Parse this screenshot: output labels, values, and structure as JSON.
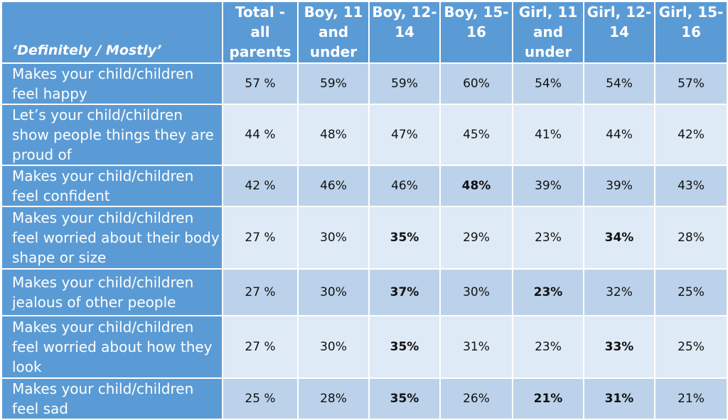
{
  "chart_data": {
    "type": "table",
    "corner_label": "‘Definitely / Mostly’",
    "columns": [
      "Total - all parents",
      "Boy, 11 and under",
      "Boy, 12-14",
      "Boy, 15-16",
      "Girl, 11 and under",
      "Girl, 12-14",
      "Girl, 15-16"
    ],
    "rows": [
      {
        "label": "Makes your child/children feel happy",
        "values": [
          "57 %",
          "59%",
          "59%",
          "60%",
          "54%",
          "54%",
          "57%"
        ],
        "bold": [
          false,
          false,
          false,
          false,
          false,
          false,
          false
        ]
      },
      {
        "label": "Let’s your child/children show people things they are proud of",
        "values": [
          "44 %",
          "48%",
          "47%",
          "45%",
          "41%",
          "44%",
          "42%"
        ],
        "bold": [
          false,
          false,
          false,
          false,
          false,
          false,
          false
        ]
      },
      {
        "label": "Makes your child/children feel confident",
        "values": [
          "42 %",
          "46%",
          "46%",
          "48%",
          "39%",
          "39%",
          "43%"
        ],
        "bold": [
          false,
          false,
          false,
          true,
          false,
          false,
          false
        ]
      },
      {
        "label": "Makes your child/children feel worried about their body shape or size",
        "values": [
          "27 %",
          "30%",
          "35%",
          "29%",
          "23%",
          "34%",
          "28%"
        ],
        "bold": [
          false,
          false,
          true,
          false,
          false,
          true,
          false
        ]
      },
      {
        "label": "Makes your child/children jealous of other people",
        "values": [
          "27 %",
          "30%",
          "37%",
          "30%",
          "23%",
          "32%",
          "25%"
        ],
        "bold": [
          false,
          false,
          true,
          false,
          true,
          false,
          false
        ]
      },
      {
        "label": "Makes your child/children feel worried about how they look",
        "values": [
          "27 %",
          "30%",
          "35%",
          "31%",
          "23%",
          "33%",
          "25%"
        ],
        "bold": [
          false,
          false,
          true,
          false,
          false,
          true,
          false
        ]
      },
      {
        "label": "Makes your child/children feel sad",
        "values": [
          "25 %",
          "28%",
          "35%",
          "26%",
          "21%",
          "31%",
          "21%"
        ],
        "bold": [
          false,
          false,
          true,
          false,
          true,
          true,
          false
        ]
      }
    ]
  }
}
